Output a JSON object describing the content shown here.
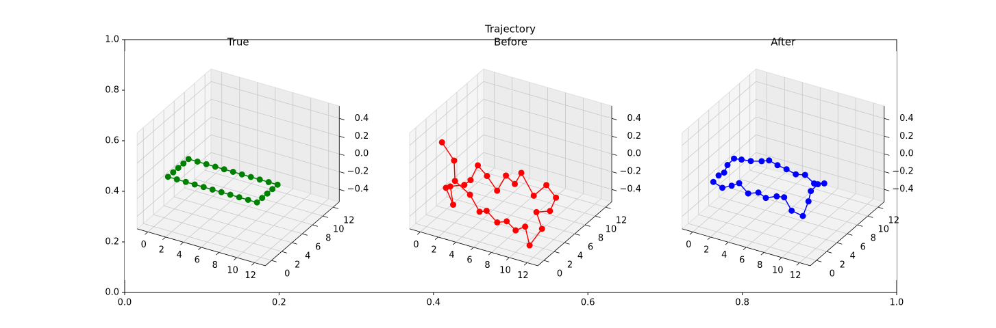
{
  "chart_data": [
    {
      "type": "axes",
      "title": "Trajectory",
      "xlim": [
        0,
        1
      ],
      "ylim": [
        0,
        1
      ],
      "xticks": [
        {
          "value": 0,
          "label": "0.0"
        },
        {
          "value": 0.2,
          "label": "0.2"
        },
        {
          "value": 0.4,
          "label": "0.4"
        },
        {
          "value": 0.6,
          "label": "0.6"
        },
        {
          "value": 0.8,
          "label": "0.8"
        },
        {
          "value": 1,
          "label": "1.0"
        }
      ],
      "yticks": [
        {
          "value": 0,
          "label": "0.0"
        },
        {
          "value": 0.2,
          "label": "0.2"
        },
        {
          "value": 0.4,
          "label": "0.4"
        },
        {
          "value": 0.6,
          "label": "0.6"
        },
        {
          "value": 0.8,
          "label": "0.8"
        },
        {
          "value": 1,
          "label": "1.0"
        }
      ]
    },
    {
      "type": "line3d",
      "title": "True",
      "xlim": [
        -1.2,
        13.2
      ],
      "ylim": [
        -1.2,
        13.2
      ],
      "zlim": [
        -0.54,
        0.54
      ],
      "xticks": [
        0,
        2,
        4,
        6,
        8,
        10,
        12
      ],
      "yticks": [
        0,
        2,
        4,
        6,
        8,
        10,
        12
      ],
      "zticks": [
        {
          "value": -0.4,
          "label": "−0.4"
        },
        {
          "value": -0.2,
          "label": "−0.2"
        },
        {
          "value": 0,
          "label": "0.0"
        },
        0.2,
        0.4
      ],
      "series": [
        {
          "color": "#008000",
          "x": [
            1,
            2,
            3,
            4,
            5,
            6,
            7,
            8,
            9,
            10,
            11,
            11,
            11,
            11,
            11,
            10,
            9,
            8,
            7,
            6,
            5,
            4,
            3,
            2,
            1,
            1,
            1,
            1
          ],
          "y": [
            1,
            1,
            1,
            1,
            1,
            1,
            1,
            1,
            1,
            1,
            1,
            2,
            3,
            4,
            5,
            5,
            5,
            5,
            5,
            5,
            5,
            5,
            5,
            5,
            5,
            4,
            3,
            2
          ],
          "z": [
            0,
            0,
            0,
            0,
            0,
            0,
            0,
            0,
            0,
            0,
            0,
            0,
            0,
            0,
            0,
            0,
            0,
            0,
            0,
            0,
            0,
            0,
            0,
            0,
            0,
            0,
            0,
            0
          ]
        }
      ]
    },
    {
      "type": "line3d",
      "title": "Before",
      "xlim": [
        -1.2,
        13.2
      ],
      "ylim": [
        -1.2,
        13.2
      ],
      "zlim": [
        -0.54,
        0.54
      ],
      "xticks": [
        0,
        2,
        4,
        6,
        8,
        10,
        12
      ],
      "yticks": [
        0,
        2,
        4,
        6,
        8,
        10,
        12
      ],
      "zticks": [
        {
          "value": -0.4,
          "label": "−0.4"
        },
        {
          "value": -0.2,
          "label": "−0.2"
        },
        {
          "value": 0,
          "label": "0.0"
        },
        0.2,
        0.4
      ],
      "series": [
        {
          "color": "#ff0000",
          "x": [
            1.4,
            2.3,
            2.8,
            4.2,
            5.1,
            6.3,
            7.2,
            8.5,
            9.1,
            10.4,
            11.3,
            11.6,
            10.8,
            11.4,
            11.9,
            10.3,
            9.4,
            7.6,
            7.1,
            5.7,
            5.4,
            3.8,
            2.6,
            2.3,
            1.2,
            0.6,
            1.5,
            0.8
          ],
          "y": [
            0.6,
            1.4,
            0.7,
            1.2,
            1.5,
            0.8,
            1.3,
            0.9,
            1.6,
            1.2,
            0.5,
            2.4,
            2.7,
            4.3,
            4.6,
            5.5,
            4.6,
            5.3,
            4.9,
            5.6,
            4.4,
            5.2,
            5.5,
            4.6,
            5.3,
            3.6,
            2.6,
            2.4
          ],
          "z": [
            0.42,
            0.2,
            0.02,
            -0.12,
            -0.3,
            -0.22,
            -0.35,
            -0.28,
            -0.4,
            -0.3,
            -0.45,
            -0.35,
            -0.2,
            -0.25,
            -0.1,
            -0.05,
            -0.15,
            0.02,
            -0.1,
            -0.08,
            -0.2,
            -0.12,
            -0.05,
            -0.18,
            -0.3,
            -0.25,
            -0.38,
            -0.2
          ]
        }
      ]
    },
    {
      "type": "line3d",
      "title": "After",
      "xlim": [
        -1.2,
        13.2
      ],
      "ylim": [
        -1.2,
        13.2
      ],
      "zlim": [
        -0.54,
        0.54
      ],
      "xticks": [
        0,
        2,
        4,
        6,
        8,
        10,
        12
      ],
      "yticks": [
        0,
        2,
        4,
        6,
        8,
        10,
        12
      ],
      "zticks": [
        {
          "value": -0.4,
          "label": "−0.4"
        },
        {
          "value": -0.2,
          "label": "−0.2"
        },
        {
          "value": 0,
          "label": "0.0"
        },
        0.2,
        0.4
      ],
      "series": [
        {
          "color": "#0000ff",
          "x": [
            1.1,
            2.0,
            3.1,
            4.0,
            4.9,
            6.1,
            7.0,
            8.1,
            9.0,
            9.9,
            11.1,
            11.1,
            10.9,
            11.0,
            11.2,
            10.0,
            9.1,
            8.0,
            6.9,
            6.0,
            5.0,
            4.1,
            3.0,
            1.9,
            1.0,
            0.9,
            1.1,
            1.0
          ],
          "y": [
            0.9,
            1.1,
            1.0,
            0.9,
            1.1,
            1.0,
            0.9,
            1.1,
            1.0,
            0.9,
            1.0,
            2.1,
            2.9,
            4.1,
            5.0,
            5.1,
            4.9,
            5.0,
            5.1,
            4.9,
            5.0,
            5.1,
            4.9,
            5.0,
            5.1,
            4.0,
            3.0,
            2.1
          ],
          "z": [
            -0.05,
            -0.1,
            -0.04,
            0.02,
            -0.08,
            -0.03,
            -0.06,
            -0.02,
            0.0,
            -0.12,
            -0.15,
            -0.04,
            0.03,
            0.05,
            0.02,
            -0.02,
            0.06,
            0.03,
            0.05,
            0.08,
            0.1,
            0.06,
            0.04,
            0.02,
            0.0,
            -0.02,
            -0.05,
            -0.04
          ]
        }
      ]
    }
  ]
}
